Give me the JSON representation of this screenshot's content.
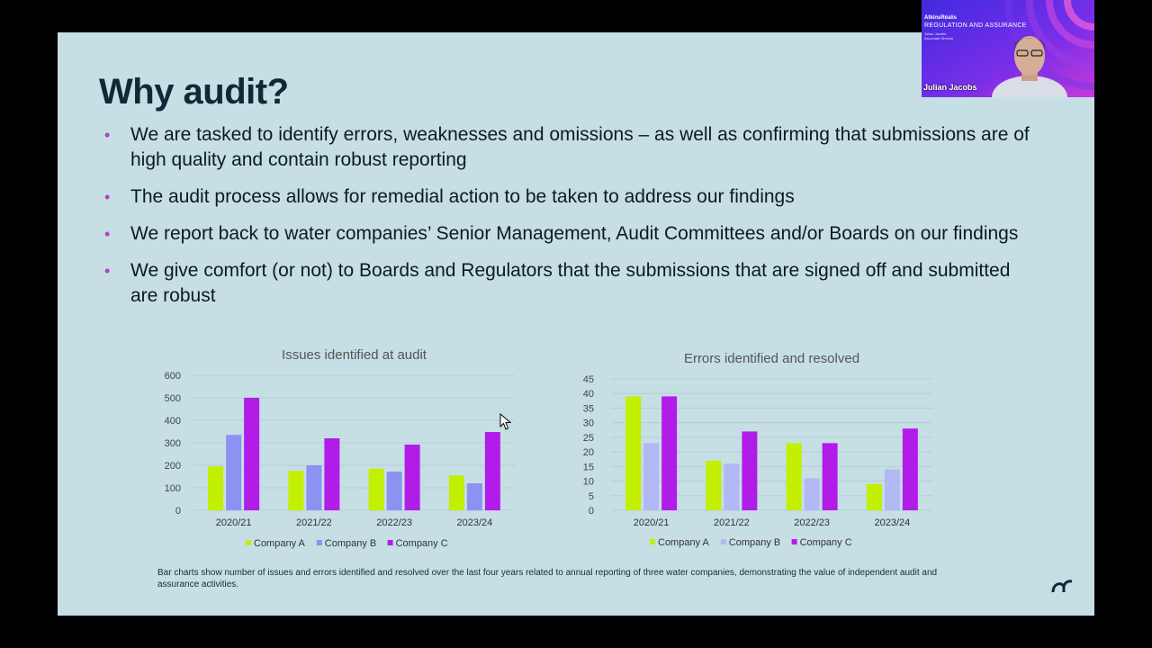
{
  "slide": {
    "title": "Why audit?",
    "bullets": [
      "We are tasked to identify errors, weaknesses and omissions – as well as confirming that submissions are of high quality and contain robust reporting",
      "The audit process allows for remedial action to be taken to address our findings",
      "We report back to water companies’ Senior Management, Audit Committees and/or Boards on our findings",
      "We give comfort (or not) to Boards and Regulators that the submissions that are signed off and submitted are robust"
    ],
    "caption": "Bar charts show number of issues and errors identified and resolved over the last four years related to annual reporting of three water companies, demonstrating the value of independent audit and assurance activities.",
    "bullet_color": "#b63bd2"
  },
  "video_overlay": {
    "org": "AtkinsRéalis",
    "heading": "REGULATION AND ASSURANCE",
    "subtext": [
      "Julian Jacobs",
      "Associate Director"
    ],
    "participant_name": "Julian Jacobs"
  },
  "chart_data": [
    {
      "type": "bar",
      "title": "Issues identified at audit",
      "categories": [
        "2020/21",
        "2021/22",
        "2022/23",
        "2023/24"
      ],
      "series": [
        {
          "name": "Company A",
          "values": [
            195,
            175,
            185,
            155
          ],
          "color": "#c2f000"
        },
        {
          "name": "Company B",
          "values": [
            335,
            200,
            172,
            120
          ],
          "color": "#8b92f2"
        },
        {
          "name": "Company C",
          "values": [
            500,
            320,
            292,
            348
          ],
          "color": "#b21ce8"
        }
      ],
      "yticks": [
        "0",
        "100",
        "200",
        "300",
        "400",
        "500",
        "600"
      ],
      "ylim": [
        0,
        600
      ],
      "grid": true,
      "legend": "bottom"
    },
    {
      "type": "bar",
      "title": "Errors identified and resolved",
      "categories": [
        "2020/21",
        "2021/22",
        "2022/23",
        "2023/24"
      ],
      "series": [
        {
          "name": "Company A",
          "values": [
            39,
            17,
            23,
            9
          ],
          "color": "#c2f000"
        },
        {
          "name": "Company B",
          "values": [
            23,
            16,
            11,
            14
          ],
          "color": "#b3b8f5"
        },
        {
          "name": "Company C",
          "values": [
            39,
            27,
            23,
            28
          ],
          "color": "#b21ce8"
        }
      ],
      "yticks": [
        "0",
        "5",
        "10",
        "15",
        "20",
        "25",
        "30",
        "35",
        "40",
        "45"
      ],
      "ylim": [
        0,
        45
      ],
      "grid": true,
      "legend": "bottom"
    }
  ]
}
